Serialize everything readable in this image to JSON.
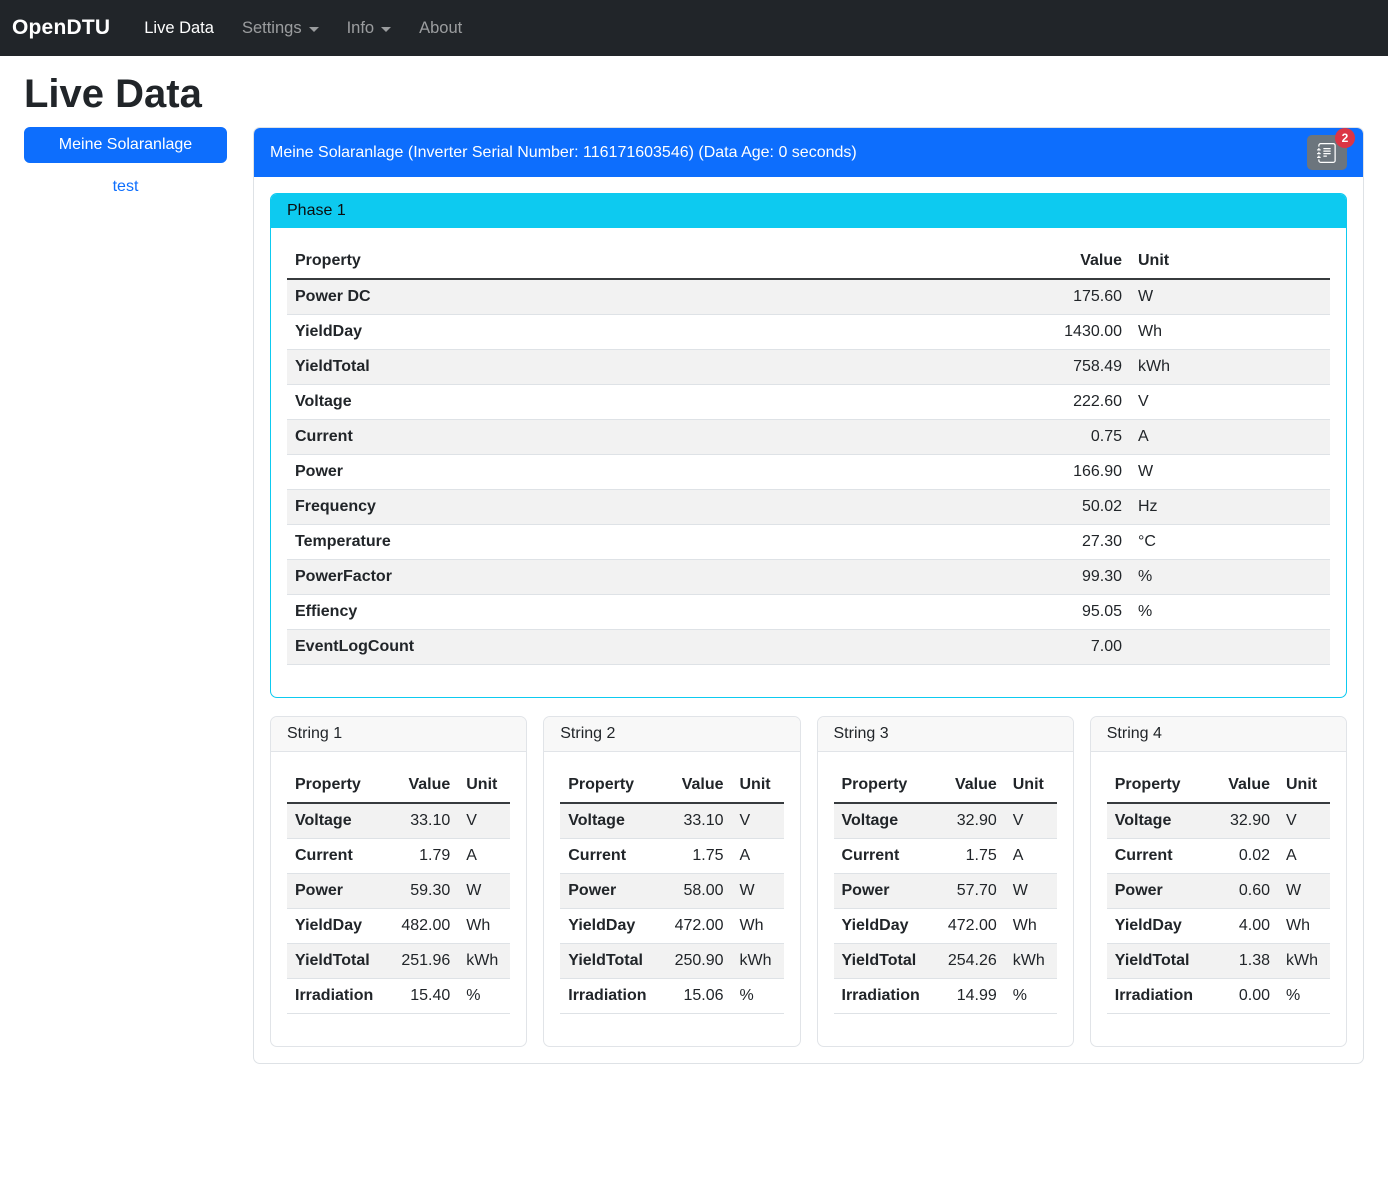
{
  "theme": {
    "navbar": "#212529",
    "primary": "#0d6efd",
    "info": "#0dcaf0",
    "secondary": "#6c757d",
    "danger": "#dc3545"
  },
  "navbar": {
    "brand": "OpenDTU",
    "items": [
      {
        "label": "Live Data"
      },
      {
        "label": "Settings"
      },
      {
        "label": "Info"
      },
      {
        "label": "About"
      }
    ]
  },
  "page": {
    "title": "Live Data"
  },
  "sidebar": {
    "selected_inverter": "Meine Solaranlage",
    "other_inverter": "test"
  },
  "inverter_card": {
    "header": "Meine Solaranlage (Inverter Serial Number: 116171603546) (Data Age: 0 seconds)",
    "eventlog_icon": "journal-text-icon",
    "eventlog_badge": "2"
  },
  "columns": {
    "property": "Property",
    "value": "Value",
    "unit": "Unit"
  },
  "phase": {
    "title": "Phase 1",
    "rows": [
      {
        "property": "Power DC",
        "value": "175.60",
        "unit": "W"
      },
      {
        "property": "YieldDay",
        "value": "1430.00",
        "unit": "Wh"
      },
      {
        "property": "YieldTotal",
        "value": "758.49",
        "unit": "kWh"
      },
      {
        "property": "Voltage",
        "value": "222.60",
        "unit": "V"
      },
      {
        "property": "Current",
        "value": "0.75",
        "unit": "A"
      },
      {
        "property": "Power",
        "value": "166.90",
        "unit": "W"
      },
      {
        "property": "Frequency",
        "value": "50.02",
        "unit": "Hz"
      },
      {
        "property": "Temperature",
        "value": "27.30",
        "unit": "°C"
      },
      {
        "property": "PowerFactor",
        "value": "99.30",
        "unit": "%"
      },
      {
        "property": "Effiency",
        "value": "95.05",
        "unit": "%"
      },
      {
        "property": "EventLogCount",
        "value": "7.00",
        "unit": ""
      }
    ]
  },
  "strings": [
    {
      "title": "String 1",
      "rows": [
        {
          "property": "Voltage",
          "value": "33.10",
          "unit": "V"
        },
        {
          "property": "Current",
          "value": "1.79",
          "unit": "A"
        },
        {
          "property": "Power",
          "value": "59.30",
          "unit": "W"
        },
        {
          "property": "YieldDay",
          "value": "482.00",
          "unit": "Wh"
        },
        {
          "property": "YieldTotal",
          "value": "251.96",
          "unit": "kWh"
        },
        {
          "property": "Irradiation",
          "value": "15.40",
          "unit": "%"
        }
      ]
    },
    {
      "title": "String 2",
      "rows": [
        {
          "property": "Voltage",
          "value": "33.10",
          "unit": "V"
        },
        {
          "property": "Current",
          "value": "1.75",
          "unit": "A"
        },
        {
          "property": "Power",
          "value": "58.00",
          "unit": "W"
        },
        {
          "property": "YieldDay",
          "value": "472.00",
          "unit": "Wh"
        },
        {
          "property": "YieldTotal",
          "value": "250.90",
          "unit": "kWh"
        },
        {
          "property": "Irradiation",
          "value": "15.06",
          "unit": "%"
        }
      ]
    },
    {
      "title": "String 3",
      "rows": [
        {
          "property": "Voltage",
          "value": "32.90",
          "unit": "V"
        },
        {
          "property": "Current",
          "value": "1.75",
          "unit": "A"
        },
        {
          "property": "Power",
          "value": "57.70",
          "unit": "W"
        },
        {
          "property": "YieldDay",
          "value": "472.00",
          "unit": "Wh"
        },
        {
          "property": "YieldTotal",
          "value": "254.26",
          "unit": "kWh"
        },
        {
          "property": "Irradiation",
          "value": "14.99",
          "unit": "%"
        }
      ]
    },
    {
      "title": "String 4",
      "rows": [
        {
          "property": "Voltage",
          "value": "32.90",
          "unit": "V"
        },
        {
          "property": "Current",
          "value": "0.02",
          "unit": "A"
        },
        {
          "property": "Power",
          "value": "0.60",
          "unit": "W"
        },
        {
          "property": "YieldDay",
          "value": "4.00",
          "unit": "Wh"
        },
        {
          "property": "YieldTotal",
          "value": "1.38",
          "unit": "kWh"
        },
        {
          "property": "Irradiation",
          "value": "0.00",
          "unit": "%"
        }
      ]
    }
  ]
}
